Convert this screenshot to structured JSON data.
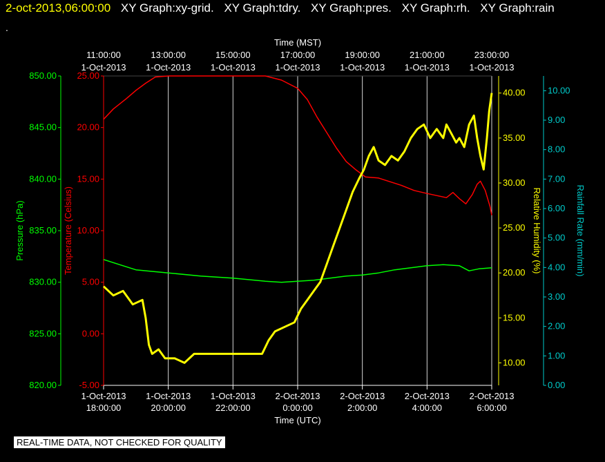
{
  "header": {
    "timestamp": "2-oct-2013,06:00:00",
    "titles": [
      "XY Graph:xy-grid.",
      "XY Graph:tdry.",
      "XY Graph:pres.",
      "XY Graph:rh.",
      "XY Graph:rain"
    ],
    "dot": "."
  },
  "badge": "REAL-TIME DATA, NOT CHECKED FOR QUALITY",
  "colors": {
    "pressure": "#00ff00",
    "temperature": "#ff0000",
    "humidity": "#ffff00",
    "rain": "#00cccc",
    "grid": "#ffffff"
  },
  "chart_data": {
    "type": "line",
    "top_axis": {
      "label": "Time (MST)",
      "ticks": [
        {
          "t": 0,
          "l1": "11:00:00",
          "l2": "1-Oct-2013"
        },
        {
          "t": 2,
          "l1": "13:00:00",
          "l2": "1-Oct-2013"
        },
        {
          "t": 4,
          "l1": "15:00:00",
          "l2": "1-Oct-2013"
        },
        {
          "t": 6,
          "l1": "17:00:00",
          "l2": "1-Oct-2013"
        },
        {
          "t": 8,
          "l1": "19:00:00",
          "l2": "1-Oct-2013"
        },
        {
          "t": 10,
          "l1": "21:00:00",
          "l2": "1-Oct-2013"
        },
        {
          "t": 12,
          "l1": "23:00:00",
          "l2": "1-Oct-2013"
        }
      ]
    },
    "bottom_axis": {
      "label": "Time (UTC)",
      "ticks": [
        {
          "t": 0,
          "l1": "1-Oct-2013",
          "l2": "18:00:00"
        },
        {
          "t": 2,
          "l1": "1-Oct-2013",
          "l2": "20:00:00"
        },
        {
          "t": 4,
          "l1": "1-Oct-2013",
          "l2": "22:00:00"
        },
        {
          "t": 6,
          "l1": "2-Oct-2013",
          "l2": "0:00:00"
        },
        {
          "t": 8,
          "l1": "2-Oct-2013",
          "l2": "2:00:00"
        },
        {
          "t": 10,
          "l1": "2-Oct-2013",
          "l2": "4:00:00"
        },
        {
          "t": 12,
          "l1": "2-Oct-2013",
          "l2": "6:00:00"
        }
      ]
    },
    "axes": {
      "pressure": {
        "label": "Pressure (hPa)",
        "range": [
          820,
          850
        ],
        "ticks": [
          "820.00",
          "825.00",
          "830.00",
          "835.00",
          "840.00",
          "845.00",
          "850.00"
        ]
      },
      "temperature": {
        "label": "Temperature (Celsius)",
        "range": [
          -5,
          25
        ],
        "ticks": [
          "-5.00",
          "0.00",
          "5.00",
          "10.00",
          "15.00",
          "20.00",
          "25.00"
        ]
      },
      "humidity": {
        "label": "Relative Humidity (%)",
        "range": [
          7.5,
          41.9
        ],
        "ticks": [
          "10.00",
          "15.00",
          "20.00",
          "25.00",
          "30.00",
          "35.00",
          "40.00"
        ]
      },
      "rain": {
        "label": "Rainfall Rate (mm/min)",
        "range": [
          0,
          10.5
        ],
        "ticks": [
          "0.00",
          "1.00",
          "2.00",
          "3.00",
          "4.00",
          "5.00",
          "6.00",
          "7.00",
          "8.00",
          "9.00",
          "10.00"
        ]
      }
    },
    "series": [
      {
        "key": "temperature",
        "points": [
          [
            0,
            20.8
          ],
          [
            0.3,
            21.8
          ],
          [
            0.7,
            22.8
          ],
          [
            1.0,
            23.6
          ],
          [
            1.3,
            24.3
          ],
          [
            1.6,
            24.9
          ],
          [
            2.0,
            25.0
          ],
          [
            3.0,
            25.0
          ],
          [
            4.0,
            25.0
          ],
          [
            5.0,
            25.0
          ],
          [
            5.5,
            24.6
          ],
          [
            6.0,
            23.8
          ],
          [
            6.3,
            22.7
          ],
          [
            6.6,
            21.0
          ],
          [
            6.9,
            19.5
          ],
          [
            7.2,
            18.0
          ],
          [
            7.5,
            16.7
          ],
          [
            7.8,
            15.9
          ],
          [
            8.1,
            15.2
          ],
          [
            8.5,
            15.1
          ],
          [
            8.8,
            14.8
          ],
          [
            9.2,
            14.4
          ],
          [
            9.6,
            13.9
          ],
          [
            10.0,
            13.6
          ],
          [
            10.3,
            13.4
          ],
          [
            10.6,
            13.2
          ],
          [
            10.8,
            13.7
          ],
          [
            11.0,
            13.1
          ],
          [
            11.2,
            12.6
          ],
          [
            11.4,
            13.5
          ],
          [
            11.55,
            14.5
          ],
          [
            11.65,
            14.8
          ],
          [
            11.8,
            13.9
          ],
          [
            11.95,
            12.3
          ],
          [
            12.0,
            11.5
          ]
        ]
      },
      {
        "key": "pressure",
        "points": [
          [
            0,
            832.2
          ],
          [
            0.5,
            831.7
          ],
          [
            1.0,
            831.2
          ],
          [
            2.0,
            830.9
          ],
          [
            3.0,
            830.6
          ],
          [
            4.0,
            830.4
          ],
          [
            5.0,
            830.1
          ],
          [
            5.5,
            830.0
          ],
          [
            6.0,
            830.1
          ],
          [
            6.5,
            830.2
          ],
          [
            7.0,
            830.4
          ],
          [
            7.5,
            830.6
          ],
          [
            8.0,
            830.7
          ],
          [
            8.5,
            830.9
          ],
          [
            9.0,
            831.2
          ],
          [
            9.5,
            831.4
          ],
          [
            10.0,
            831.6
          ],
          [
            10.5,
            831.7
          ],
          [
            11.0,
            831.6
          ],
          [
            11.3,
            831.1
          ],
          [
            11.6,
            831.3
          ],
          [
            12.0,
            831.4
          ]
        ]
      },
      {
        "key": "humidity",
        "points": [
          [
            0,
            18.5
          ],
          [
            0.3,
            17.5
          ],
          [
            0.6,
            18.0
          ],
          [
            0.9,
            16.5
          ],
          [
            1.2,
            17.0
          ],
          [
            1.3,
            15.0
          ],
          [
            1.4,
            12.0
          ],
          [
            1.5,
            11.0
          ],
          [
            1.7,
            11.5
          ],
          [
            1.9,
            10.5
          ],
          [
            2.2,
            10.5
          ],
          [
            2.5,
            10.0
          ],
          [
            2.8,
            11.0
          ],
          [
            3.1,
            11.0
          ],
          [
            3.4,
            11.0
          ],
          [
            3.7,
            11.0
          ],
          [
            4.0,
            11.0
          ],
          [
            4.3,
            11.0
          ],
          [
            4.6,
            11.0
          ],
          [
            4.9,
            11.0
          ],
          [
            5.1,
            12.5
          ],
          [
            5.3,
            13.5
          ],
          [
            5.6,
            14.0
          ],
          [
            5.9,
            14.5
          ],
          [
            6.1,
            16.0
          ],
          [
            6.3,
            17.0
          ],
          [
            6.5,
            18.0
          ],
          [
            6.7,
            19.0
          ],
          [
            6.9,
            21.0
          ],
          [
            7.1,
            23.0
          ],
          [
            7.3,
            25.0
          ],
          [
            7.5,
            27.0
          ],
          [
            7.7,
            29.0
          ],
          [
            7.9,
            30.5
          ],
          [
            8.05,
            31.5
          ],
          [
            8.2,
            33.0
          ],
          [
            8.35,
            34.0
          ],
          [
            8.5,
            32.5
          ],
          [
            8.7,
            32.0
          ],
          [
            8.9,
            33.0
          ],
          [
            9.1,
            32.5
          ],
          [
            9.3,
            33.5
          ],
          [
            9.5,
            35.0
          ],
          [
            9.7,
            36.0
          ],
          [
            9.9,
            36.5
          ],
          [
            10.1,
            35.0
          ],
          [
            10.3,
            36.0
          ],
          [
            10.5,
            35.0
          ],
          [
            10.6,
            36.5
          ],
          [
            10.75,
            35.5
          ],
          [
            10.9,
            34.5
          ],
          [
            11.0,
            35.0
          ],
          [
            11.15,
            34.0
          ],
          [
            11.3,
            36.5
          ],
          [
            11.45,
            37.5
          ],
          [
            11.55,
            35.0
          ],
          [
            11.65,
            33.0
          ],
          [
            11.75,
            31.5
          ],
          [
            11.85,
            35.0
          ],
          [
            11.92,
            38.0
          ],
          [
            12.0,
            40.0
          ]
        ]
      },
      {
        "key": "rain",
        "points": []
      }
    ]
  }
}
